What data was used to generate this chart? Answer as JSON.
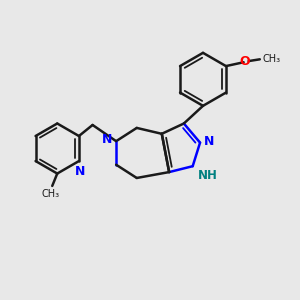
{
  "background_color": "#e8e8e8",
  "bond_color": "#1a1a1a",
  "N_color": "#0000ff",
  "O_color": "#ff0000",
  "NH_color": "#008080",
  "figsize": [
    3.0,
    3.0
  ],
  "dpi": 100,
  "xlim": [
    0,
    10
  ],
  "ylim": [
    0,
    10
  ]
}
